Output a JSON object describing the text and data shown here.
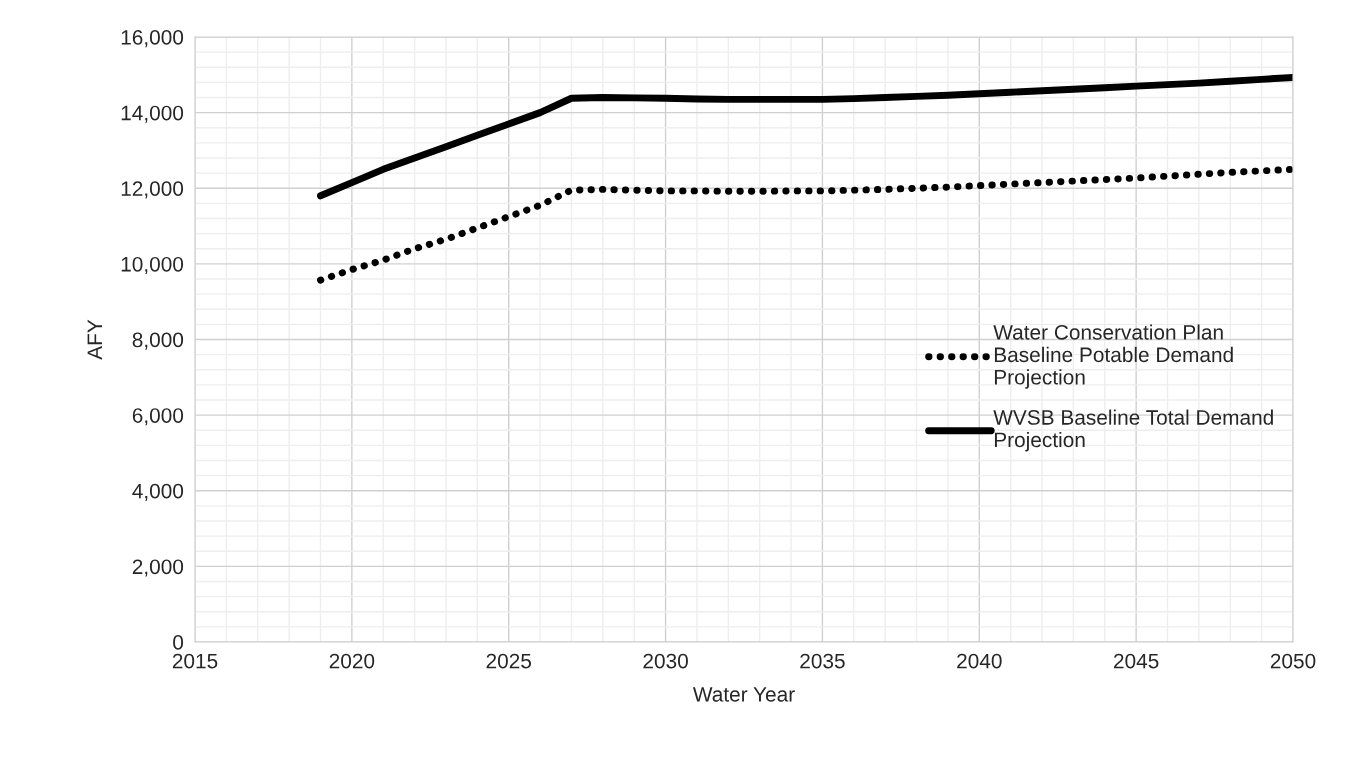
{
  "chart_data": {
    "type": "line",
    "xlabel": "Water Year",
    "ylabel": "AFY",
    "x": [
      2019,
      2020,
      2021,
      2022,
      2023,
      2024,
      2025,
      2026,
      2027,
      2028,
      2029,
      2030,
      2031,
      2032,
      2033,
      2034,
      2035,
      2036,
      2037,
      2038,
      2039,
      2040,
      2041,
      2042,
      2043,
      2044,
      2045,
      2046,
      2047,
      2048,
      2049,
      2050
    ],
    "series": [
      {
        "name": "Water Conservation Plan Baseline Potable Demand Projection",
        "color": "#000000",
        "line_style": "dotted",
        "values": [
          9570,
          9850,
          10100,
          10400,
          10650,
          10950,
          11250,
          11550,
          11950,
          11970,
          11950,
          11930,
          11930,
          11920,
          11920,
          11930,
          11930,
          11950,
          11970,
          12000,
          12030,
          12070,
          12110,
          12150,
          12190,
          12230,
          12270,
          12320,
          12370,
          12420,
          12460,
          12500
        ]
      },
      {
        "name": "WVSB Baseline Total Demand Projection",
        "color": "#000000",
        "line_style": "solid",
        "values": [
          11800,
          12150,
          12500,
          12800,
          13100,
          13400,
          13700,
          14000,
          14380,
          14400,
          14390,
          14380,
          14360,
          14350,
          14350,
          14350,
          14350,
          14370,
          14400,
          14430,
          14460,
          14500,
          14540,
          14580,
          14620,
          14660,
          14700,
          14740,
          14780,
          14830,
          14880,
          14930
        ]
      }
    ],
    "xlim": [
      2015,
      2050
    ],
    "xticks": [
      2015,
      2020,
      2025,
      2030,
      2035,
      2040,
      2045,
      2050
    ],
    "ylim": [
      0,
      16000
    ],
    "yticks": [
      0,
      {
        "value": 2000,
        "label": "2,000"
      },
      {
        "value": 4000,
        "label": "4,000"
      },
      {
        "value": 6000,
        "label": "6,000"
      },
      {
        "value": 8000,
        "label": "8,000"
      },
      {
        "value": 10000,
        "label": "10,000"
      },
      {
        "value": 12000,
        "label": "12,000"
      },
      {
        "value": 14000,
        "label": "14,000"
      },
      {
        "value": 16000,
        "label": "16,000"
      }
    ],
    "grid": true,
    "legend": "right",
    "marker": "none"
  }
}
